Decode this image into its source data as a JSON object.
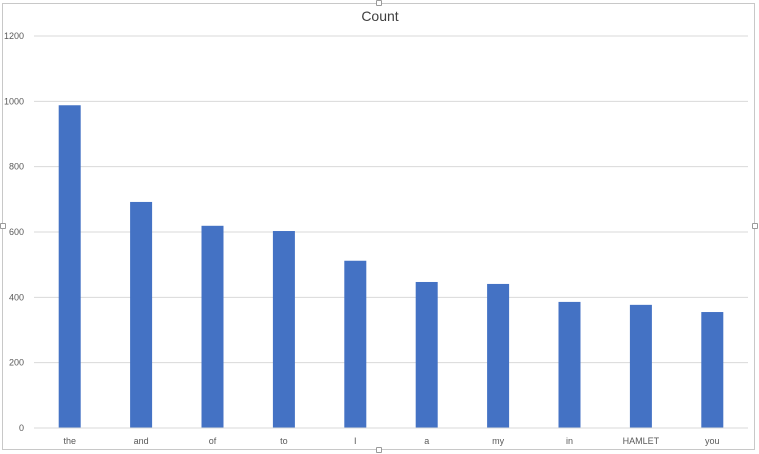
{
  "chart_data": {
    "type": "bar",
    "title": "Count",
    "xlabel": "",
    "ylabel": "",
    "categories": [
      "the",
      "and",
      "of",
      "to",
      "I",
      "a",
      "my",
      "in",
      "HAMLET",
      "you"
    ],
    "values": [
      988,
      692,
      619,
      603,
      512,
      447,
      441,
      386,
      377,
      355
    ],
    "ylim": [
      0,
      1200
    ],
    "yticks": [
      "0",
      "200",
      "400",
      "600",
      "800",
      "1000",
      "1200"
    ],
    "grid": true,
    "legend": "none",
    "bar_color": "#4472C4",
    "grid_color": "#d9d9d9"
  }
}
